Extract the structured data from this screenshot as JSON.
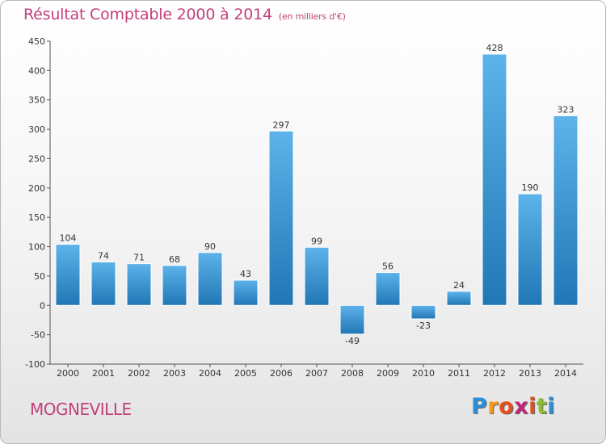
{
  "header": {
    "title": "Résultat Comptable 2000 à 2014",
    "subtitle": "(en milliers d'€)"
  },
  "footer": {
    "commune": "MOGNEVILLE",
    "logo_letters": [
      "P",
      "r",
      "o",
      "x",
      "i",
      "t",
      "i"
    ],
    "logo_colors": [
      "#2a8fd8",
      "#f39a1c",
      "#e94e1b",
      "#c0257a",
      "#e94e1b",
      "#8bbf2b",
      "#2a8fd8"
    ]
  },
  "colors": {
    "title": "#c2407b",
    "bar_top": "#5eb3ea",
    "bar_bottom": "#2176b5"
  },
  "chart_data": {
    "type": "bar",
    "title": "Résultat Comptable 2000 à 2014",
    "subtitle": "(en milliers d'€)",
    "categories": [
      "2000",
      "2001",
      "2002",
      "2003",
      "2004",
      "2005",
      "2006",
      "2007",
      "2008",
      "2009",
      "2010",
      "2011",
      "2012",
      "2013",
      "2014"
    ],
    "values": [
      104,
      74,
      71,
      68,
      90,
      43,
      297,
      99,
      -49,
      56,
      -23,
      24,
      428,
      190,
      323
    ],
    "ylim": [
      -100,
      450
    ],
    "yticks": [
      -100,
      -50,
      0,
      50,
      100,
      150,
      200,
      250,
      300,
      350,
      400,
      450
    ],
    "grid": false,
    "legend": "none"
  }
}
